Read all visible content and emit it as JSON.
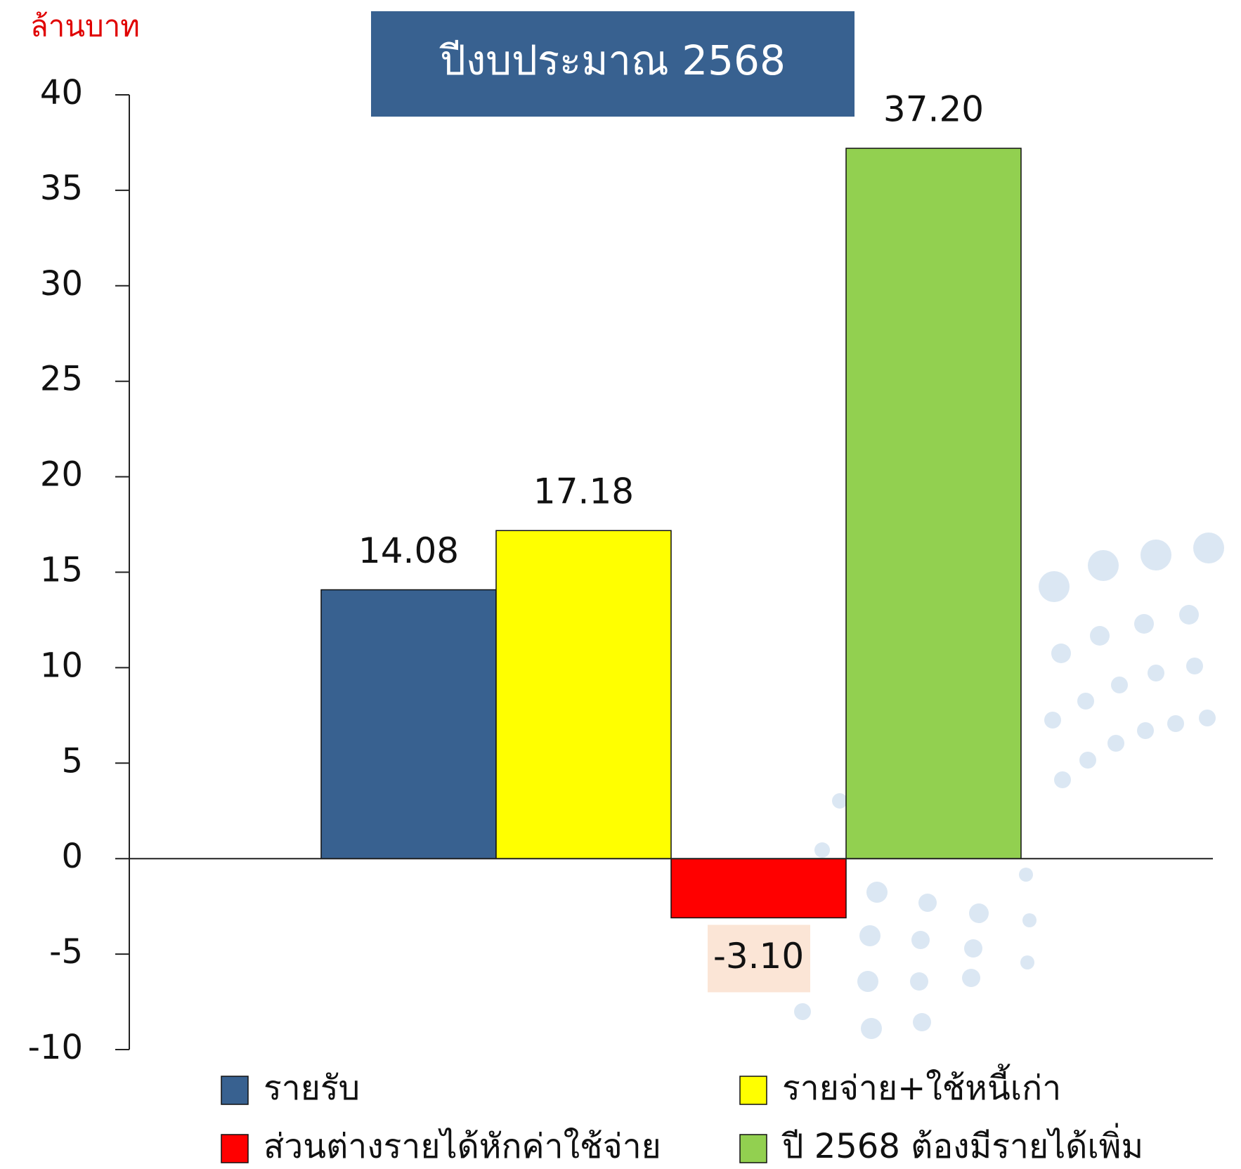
{
  "chart_data": {
    "type": "bar",
    "title": "ปีงบประมาณ 2568",
    "y_label": "ล้านบาท",
    "categories": [
      null
    ],
    "series": [
      {
        "name": "รายรับ",
        "color": "#386190",
        "values": [
          14.08
        ]
      },
      {
        "name": "รายจ่าย+ใช้หนี้เก่า",
        "color": "#ffff00",
        "values": [
          17.18
        ]
      },
      {
        "name": "ส่วนต่างรายได้หักค่าใช้จ่าย",
        "color": "#ff0000",
        "values": [
          -3.1
        ],
        "value_labels": [
          "-3.10"
        ]
      },
      {
        "name": "ปี 2568 ต้องมีรายได้เพิ่ม",
        "color": "#92d050",
        "values": [
          37.2
        ],
        "value_labels": [
          "37.20"
        ]
      }
    ],
    "ylim": [
      -10,
      40
    ],
    "yticks": [
      -10,
      -5,
      0,
      5,
      10,
      15,
      20,
      25,
      30,
      35,
      40
    ],
    "grid": false
  }
}
